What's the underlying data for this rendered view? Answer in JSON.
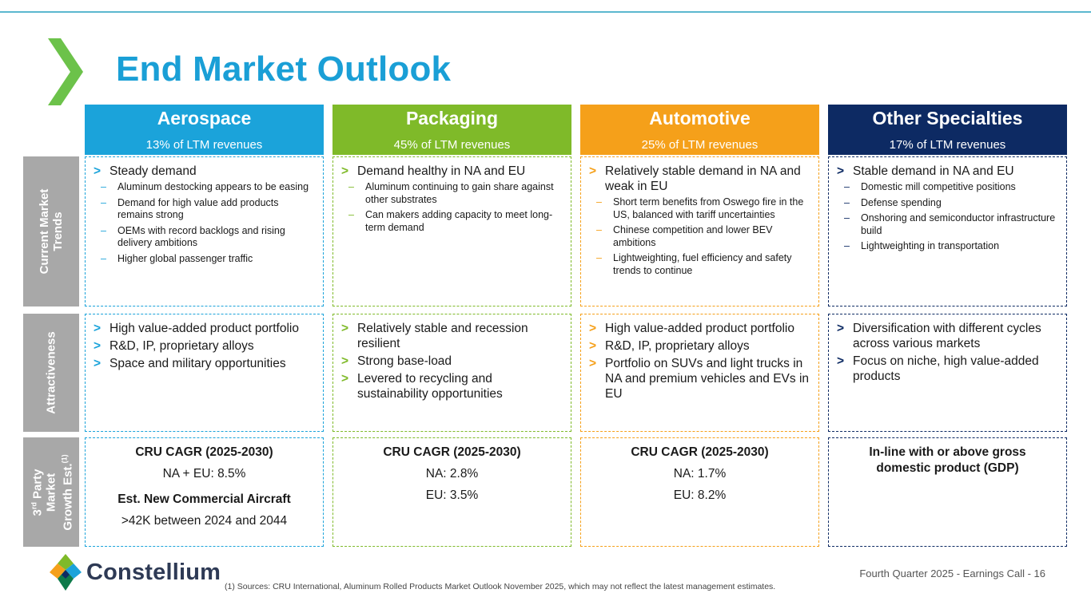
{
  "title": "End Market Outlook",
  "colors": {
    "aerospace": "#1ba3da",
    "packaging": "#7fba29",
    "automotive": "#f5a01a",
    "other": "#0d2a63",
    "label_gray": "#a8a8a8",
    "title_blue": "#1a9fd6",
    "chevron_green": "#6cc24a"
  },
  "row_labels": {
    "trends": "Current Market Trends",
    "attractiveness": "Attractiveness",
    "growth_sup": "rd",
    "growth_pre": "3",
    "growth_line1": " Party",
    "growth_line2": "Market",
    "growth_line3": "Growth Est.",
    "growth_note": "(1)"
  },
  "markers": {
    "arrow": ">",
    "dash": "–"
  },
  "columns": [
    {
      "name": "Aerospace",
      "share": "13% of LTM revenues",
      "trend_main": "Steady demand",
      "trend_subs": [
        "Aluminum destocking appears to be easing",
        "Demand for high value add products remains strong",
        "OEMs with record backlogs and rising delivery ambitions",
        "Higher global passenger traffic"
      ],
      "attractiveness": [
        "High value-added product portfolio",
        "R&D, IP, proprietary alloys",
        "Space and military opportunities"
      ],
      "growth": {
        "head": "CRU CAGR (2025-2030)",
        "lines": [
          "NA + EU: 8.5%"
        ],
        "head2": "Est. New Commercial Aircraft",
        "line2": ">42K between 2024 and 2044"
      }
    },
    {
      "name": "Packaging",
      "share": "45% of LTM revenues",
      "trend_main": "Demand healthy in NA and EU",
      "trend_subs": [
        "Aluminum continuing to gain share against other substrates",
        "Can makers adding capacity to meet long-term demand"
      ],
      "attractiveness": [
        "Relatively stable and recession resilient",
        "Strong base-load",
        "Levered to recycling and sustainability opportunities"
      ],
      "growth": {
        "head": "CRU CAGR (2025-2030)",
        "lines": [
          "NA: 2.8%",
          "EU: 3.5%"
        ]
      }
    },
    {
      "name": "Automotive",
      "share": "25% of LTM revenues",
      "trend_main": "Relatively stable demand in NA and weak in EU",
      "trend_subs": [
        "Short term benefits from Oswego fire in the US, balanced with tariff uncertainties",
        "Chinese competition and lower BEV ambitions",
        "Lightweighting, fuel efficiency and safety trends to continue"
      ],
      "attractiveness": [
        "High value-added product portfolio",
        "R&D, IP, proprietary alloys",
        "Portfolio on SUVs and light trucks in NA and premium vehicles and EVs in EU"
      ],
      "growth": {
        "head": "CRU CAGR (2025-2030)",
        "lines": [
          "NA: 1.7%",
          "EU: 8.2%"
        ]
      }
    },
    {
      "name": "Other Specialties",
      "share": "17% of LTM revenues",
      "trend_main": "Stable demand in NA and EU",
      "trend_subs": [
        "Domestic mill competitive positions",
        "Defense spending",
        "Onshoring and semiconductor infrastructure build",
        "Lightweighting in transportation"
      ],
      "attractiveness": [
        "Diversification with different cycles across various markets",
        "Focus on niche, high value-added products"
      ],
      "growth": {
        "head": "In-line with or above gross domestic product (GDP)"
      }
    }
  ],
  "logo_text": "Constellium",
  "footer_page": "Fourth Quarter 2025 - Earnings Call - 16",
  "footnote": "(1) Sources: CRU International, Aluminum Rolled Products Market Outlook November 2025, which may not reflect the latest management estimates."
}
